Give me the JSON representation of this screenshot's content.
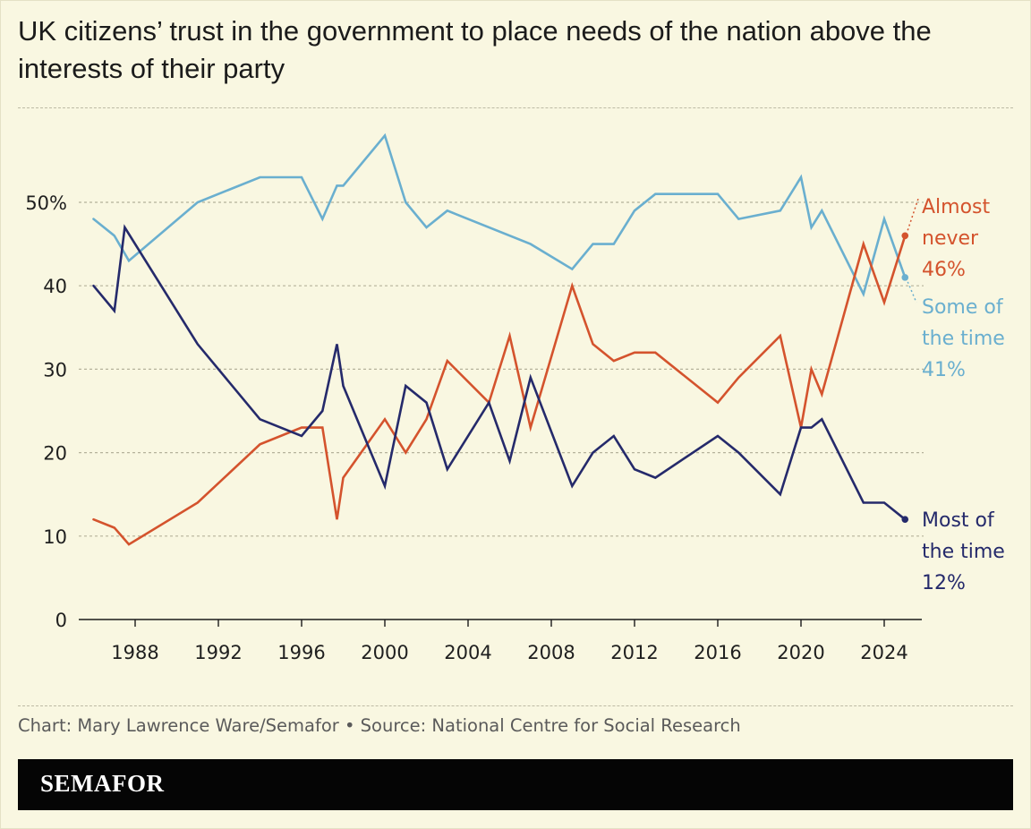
{
  "title": "UK citizens’ trust in the government to place needs of the nation above the interests of their party",
  "footer": {
    "credit": "Chart: Mary Lawrence Ware/Semafor • Source: National Centre for Social Research"
  },
  "brand": {
    "logo_text": "SEMAFOR"
  },
  "colors": {
    "background": "#f9f7e1",
    "some_of_the_time": "#6aafcf",
    "almost_never": "#d4532d",
    "most_of_the_time": "#252a6b",
    "brand_bar": "#050505"
  },
  "chart_data": {
    "type": "line",
    "title": "UK citizens’ trust in the government to place needs of the nation above the interests of their party",
    "xlabel": "",
    "ylabel": "",
    "xlim": [
      1985.5,
      2025.5
    ],
    "ylim": [
      0,
      58
    ],
    "x_ticks": [
      1988,
      1992,
      1996,
      2000,
      2004,
      2008,
      2012,
      2016,
      2020,
      2024
    ],
    "x_tick_labels": [
      "1988",
      "1992",
      "1996",
      "2000",
      "2004",
      "2008",
      "2012",
      "2016",
      "2020",
      "2024"
    ],
    "y_ticks": [
      0,
      10,
      20,
      30,
      40,
      50
    ],
    "y_tick_labels": [
      "0",
      "10",
      "20",
      "30",
      "40",
      "50%"
    ],
    "grid": "horizontal dashed",
    "series": [
      {
        "id": "some",
        "label_lines": [
          "Some of",
          "the time",
          "41%"
        ],
        "color": "#6aafcf",
        "points": [
          [
            1986,
            48
          ],
          [
            1987,
            46
          ],
          [
            1987.7,
            43
          ],
          [
            1991,
            50
          ],
          [
            1994,
            53
          ],
          [
            1996,
            53
          ],
          [
            1997,
            48
          ],
          [
            1997.7,
            52
          ],
          [
            1998,
            52
          ],
          [
            2000,
            58
          ],
          [
            2001,
            50
          ],
          [
            2002,
            47
          ],
          [
            2003,
            49
          ],
          [
            2007,
            45
          ],
          [
            2009,
            42
          ],
          [
            2010,
            45
          ],
          [
            2011,
            45
          ],
          [
            2012,
            49
          ],
          [
            2013,
            51
          ],
          [
            2016,
            51
          ],
          [
            2017,
            48
          ],
          [
            2019,
            49
          ],
          [
            2020,
            53
          ],
          [
            2020.5,
            47
          ],
          [
            2021,
            49
          ],
          [
            2023,
            39
          ],
          [
            2024,
            48
          ],
          [
            2025,
            41
          ]
        ]
      },
      {
        "id": "never",
        "label_lines": [
          "Almost",
          "never",
          "46%"
        ],
        "color": "#d4532d",
        "points": [
          [
            1986,
            12
          ],
          [
            1987,
            11
          ],
          [
            1987.7,
            9
          ],
          [
            1991,
            14
          ],
          [
            1994,
            21
          ],
          [
            1996,
            23
          ],
          [
            1997,
            23
          ],
          [
            1997.7,
            12
          ],
          [
            1998,
            17
          ],
          [
            2000,
            24
          ],
          [
            2001,
            20
          ],
          [
            2002,
            24
          ],
          [
            2003,
            31
          ],
          [
            2005,
            26
          ],
          [
            2006,
            34
          ],
          [
            2007,
            23
          ],
          [
            2009,
            40
          ],
          [
            2010,
            33
          ],
          [
            2011,
            31
          ],
          [
            2012,
            32
          ],
          [
            2013,
            32
          ],
          [
            2016,
            26
          ],
          [
            2017,
            29
          ],
          [
            2019,
            34
          ],
          [
            2020,
            23
          ],
          [
            2020.5,
            30
          ],
          [
            2021,
            27
          ],
          [
            2023,
            45
          ],
          [
            2024,
            38
          ],
          [
            2025,
            46
          ]
        ]
      },
      {
        "id": "most",
        "label_lines": [
          "Most of",
          "the time",
          "12%"
        ],
        "color": "#252a6b",
        "points": [
          [
            1986,
            40
          ],
          [
            1987,
            37
          ],
          [
            1987.5,
            47
          ],
          [
            1991,
            33
          ],
          [
            1994,
            24
          ],
          [
            1996,
            22
          ],
          [
            1997,
            25
          ],
          [
            1997.7,
            33
          ],
          [
            1998,
            28
          ],
          [
            2000,
            16
          ],
          [
            2001,
            28
          ],
          [
            2002,
            26
          ],
          [
            2003,
            18
          ],
          [
            2005,
            26
          ],
          [
            2006,
            19
          ],
          [
            2007,
            29
          ],
          [
            2009,
            16
          ],
          [
            2010,
            20
          ],
          [
            2011,
            22
          ],
          [
            2012,
            18
          ],
          [
            2013,
            17
          ],
          [
            2016,
            22
          ],
          [
            2017,
            20
          ],
          [
            2019,
            15
          ],
          [
            2020,
            23
          ],
          [
            2020.5,
            23
          ],
          [
            2021,
            24
          ],
          [
            2023,
            14
          ],
          [
            2024,
            14
          ],
          [
            2025,
            12
          ]
        ]
      }
    ]
  }
}
